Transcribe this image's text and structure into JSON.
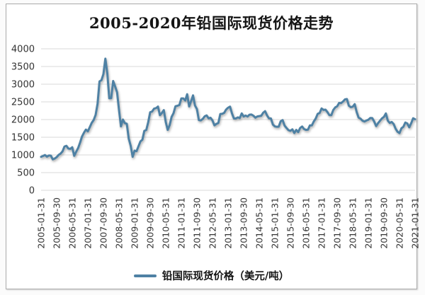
{
  "colors": {
    "line": "#4E81A4",
    "grid": "#D9D9D9",
    "tick_text": "#333333",
    "title_text": "#141414",
    "card_border": "#ABABAB",
    "background": "#FFFFFF"
  },
  "chart_data": {
    "type": "line",
    "title": "2005-2020年铅国际现货价格走势",
    "xlabel": "",
    "ylabel": "",
    "ylim": [
      0,
      4000
    ],
    "y_ticks": [
      0,
      500,
      1000,
      1500,
      2000,
      2500,
      3000,
      3500,
      4000
    ],
    "grid": "horizontal",
    "legend_position": "bottom",
    "x_unit": "month",
    "x_tick_labels": [
      "2005-01-31",
      "2005-09-30",
      "2006-05-31",
      "2007-01-31",
      "2007-09-30",
      "2008-05-31",
      "2009-01-31",
      "2009-09-30",
      "2010-05-31",
      "2011-01-31",
      "2011-09-30",
      "2012-05-31",
      "2013-01-31",
      "2013-09-30",
      "2014-05-31",
      "2015-01-31",
      "2015-09-30",
      "2016-05-31",
      "2017-01-31",
      "2017-09-30",
      "2018-05-31",
      "2019-01-31",
      "2019-09-30",
      "2020-05-31",
      "2021-01-31"
    ],
    "series": [
      {
        "name": "铅国际现货价格（美元/吨）",
        "color": "#4E81A4",
        "values": [
          947,
          970,
          997,
          951,
          984,
          980,
          874,
          897,
          937,
          1000,
          1037,
          1100,
          1237,
          1257,
          1181,
          1171,
          1217,
          975,
          1088,
          1193,
          1345,
          1520,
          1627,
          1717,
          1667,
          1786,
          1907,
          1987,
          2132,
          2448,
          3080,
          3113,
          3287,
          3722,
          3305,
          2603,
          2608,
          3089,
          2938,
          2773,
          2275,
          1807,
          2000,
          1898,
          1881,
          1461,
          1257,
          947,
          1121,
          1107,
          1245,
          1382,
          1430,
          1680,
          1705,
          1926,
          2207,
          2228,
          2309,
          2323,
          2368,
          2124,
          2186,
          2267,
          1932,
          1708,
          1842,
          2075,
          2181,
          2377,
          2390,
          2412,
          2597,
          2598,
          2540,
          2716,
          2371,
          2520,
          2684,
          2399,
          2298,
          1984,
          1976,
          2019,
          2093,
          2117,
          2035,
          2050,
          1974,
          1837,
          1877,
          1903,
          2157,
          2163,
          2190,
          2284,
          2335,
          2366,
          2173,
          2030,
          2031,
          2062,
          2043,
          2174,
          2086,
          2114,
          2086,
          2137,
          2143,
          2108,
          2053,
          2087,
          2097,
          2107,
          2192,
          2237,
          2117,
          2034,
          2029,
          1860,
          1806,
          1796,
          1801,
          1951,
          1985,
          1830,
          1762,
          1700,
          1681,
          1724,
          1620,
          1708,
          1646,
          1762,
          1804,
          1732,
          1707,
          1714,
          1834,
          1835,
          1947,
          2030,
          2162,
          2186,
          2314,
          2273,
          2280,
          2212,
          2125,
          2125,
          2270,
          2343,
          2375,
          2471,
          2466,
          2510,
          2570,
          2580,
          2391,
          2351,
          2364,
          2437,
          2216,
          2056,
          2025,
          1967,
          1944,
          1972,
          1996,
          2044,
          2043,
          1945,
          1816,
          1899,
          1967,
          2034,
          2075,
          2174,
          1969,
          1904,
          1933,
          1873,
          1742,
          1654,
          1618,
          1753,
          1797,
          1917,
          1888,
          1781,
          1896,
          2036,
          2008
        ]
      }
    ]
  }
}
